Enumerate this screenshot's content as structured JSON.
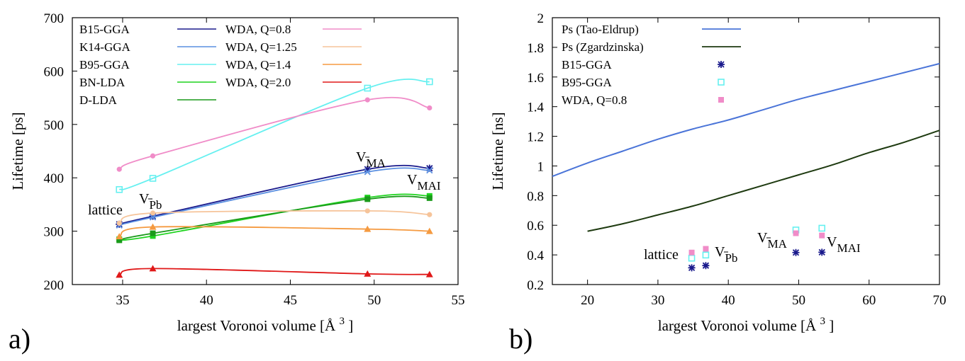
{
  "panels": {
    "a": "a)",
    "b": "b)"
  },
  "chart_data": [
    {
      "type": "line",
      "id": "a",
      "xlabel": "largest Voronoi volume [Å",
      "xlabel_sup": "3",
      "xlabel_close": "]",
      "ylabel": "Lifetime [ps]",
      "xlim": [
        32,
        55
      ],
      "ylim": [
        200,
        700
      ],
      "xticks": [
        35,
        40,
        45,
        50,
        55
      ],
      "yticks": [
        200,
        300,
        400,
        500,
        600,
        700
      ],
      "x": [
        34.8,
        36.8,
        49.6,
        53.3
      ],
      "series": [
        {
          "name": "B15-GGA",
          "color": "#1a1a8c",
          "marker": "star",
          "values": [
            313,
            328,
            416,
            418
          ]
        },
        {
          "name": "K14-GGA",
          "color": "#5a8fe0",
          "marker": "x",
          "values": [
            311,
            326,
            411,
            414
          ]
        },
        {
          "name": "B95-GGA",
          "color": "#66f0f0",
          "marker": "square-open",
          "values": [
            378,
            399,
            568,
            580
          ]
        },
        {
          "name": "BN-LDA",
          "color": "#1fd41f",
          "marker": "square",
          "values": [
            285,
            291,
            363,
            366
          ]
        },
        {
          "name": "D-LDA",
          "color": "#1a9a1a",
          "marker": "square",
          "values": [
            283,
            296,
            360,
            362
          ]
        },
        {
          "name": "WDA, Q=0.8",
          "color": "#f08cc8",
          "marker": "circle",
          "values": [
            416,
            441,
            546,
            531
          ]
        },
        {
          "name": "WDA, Q=1.25",
          "color": "#f6c49a",
          "marker": "circle",
          "values": [
            315,
            334,
            338,
            331
          ]
        },
        {
          "name": "WDA, Q=1.4",
          "color": "#f59a40",
          "marker": "triangle",
          "values": [
            290,
            308,
            304,
            300
          ]
        },
        {
          "name": "WDA, Q=2.0",
          "color": "#e01818",
          "marker": "triangle",
          "values": [
            218,
            230,
            220,
            219
          ]
        }
      ],
      "annotations": [
        {
          "text": "lattice",
          "sub": ""
        },
        {
          "text": "V",
          "sub": "Pb"
        },
        {
          "text": "V",
          "sub": "MA"
        },
        {
          "text": "V",
          "sub": "MAI"
        }
      ]
    },
    {
      "type": "line",
      "id": "b",
      "xlabel": "largest Voronoi volume [Å",
      "xlabel_sup": "3",
      "xlabel_close": "]",
      "ylabel": "Lifetime [ns]",
      "xlim": [
        15,
        70
      ],
      "ylim": [
        0.2,
        2.0
      ],
      "xticks": [
        20,
        30,
        40,
        50,
        60,
        70
      ],
      "yticks": [
        0.2,
        0.4,
        0.6,
        0.8,
        1.0,
        1.2,
        1.4,
        1.6,
        1.8,
        2.0
      ],
      "ytick_labels": [
        "0.2",
        "0.4",
        "0.6",
        "0.8",
        "1",
        "1.2",
        "1.4",
        "1.6",
        "1.8",
        "2"
      ],
      "series": [
        {
          "name": "Ps (Tao-Eldrup)",
          "color": "#4a74d8",
          "kind": "curve",
          "x": [
            15,
            20,
            25,
            30,
            35,
            40,
            45,
            50,
            55,
            60,
            65,
            70
          ],
          "values": [
            0.93,
            1.02,
            1.1,
            1.18,
            1.25,
            1.31,
            1.38,
            1.45,
            1.51,
            1.57,
            1.63,
            1.69
          ]
        },
        {
          "name": "Ps (Zgardzinska)",
          "color": "#1e3a10",
          "kind": "curve",
          "x": [
            20,
            25,
            30,
            35,
            40,
            45,
            50,
            55,
            60,
            65,
            70
          ],
          "values": [
            0.56,
            0.61,
            0.67,
            0.73,
            0.8,
            0.87,
            0.94,
            1.01,
            1.09,
            1.16,
            1.24
          ]
        },
        {
          "name": "B15-GGA",
          "color": "#1a1a8c",
          "kind": "points",
          "marker": "star",
          "x": [
            34.8,
            36.8,
            49.6,
            53.3
          ],
          "values": [
            0.313,
            0.328,
            0.416,
            0.418
          ]
        },
        {
          "name": "B95-GGA",
          "color": "#66f0f0",
          "kind": "points",
          "marker": "square-open",
          "x": [
            34.8,
            36.8,
            49.6,
            53.3
          ],
          "values": [
            0.378,
            0.399,
            0.568,
            0.58
          ]
        },
        {
          "name": "WDA, Q=0.8",
          "color": "#f08cc8",
          "kind": "points",
          "marker": "square",
          "x": [
            34.8,
            36.8,
            49.6,
            53.3
          ],
          "values": [
            0.416,
            0.441,
            0.546,
            0.531
          ]
        }
      ],
      "annotations": [
        {
          "text": "lattice",
          "sub": ""
        },
        {
          "text": "V",
          "sub": "Pb"
        },
        {
          "text": "V",
          "sub": "MA"
        },
        {
          "text": "V",
          "sub": "MAI"
        }
      ]
    }
  ]
}
